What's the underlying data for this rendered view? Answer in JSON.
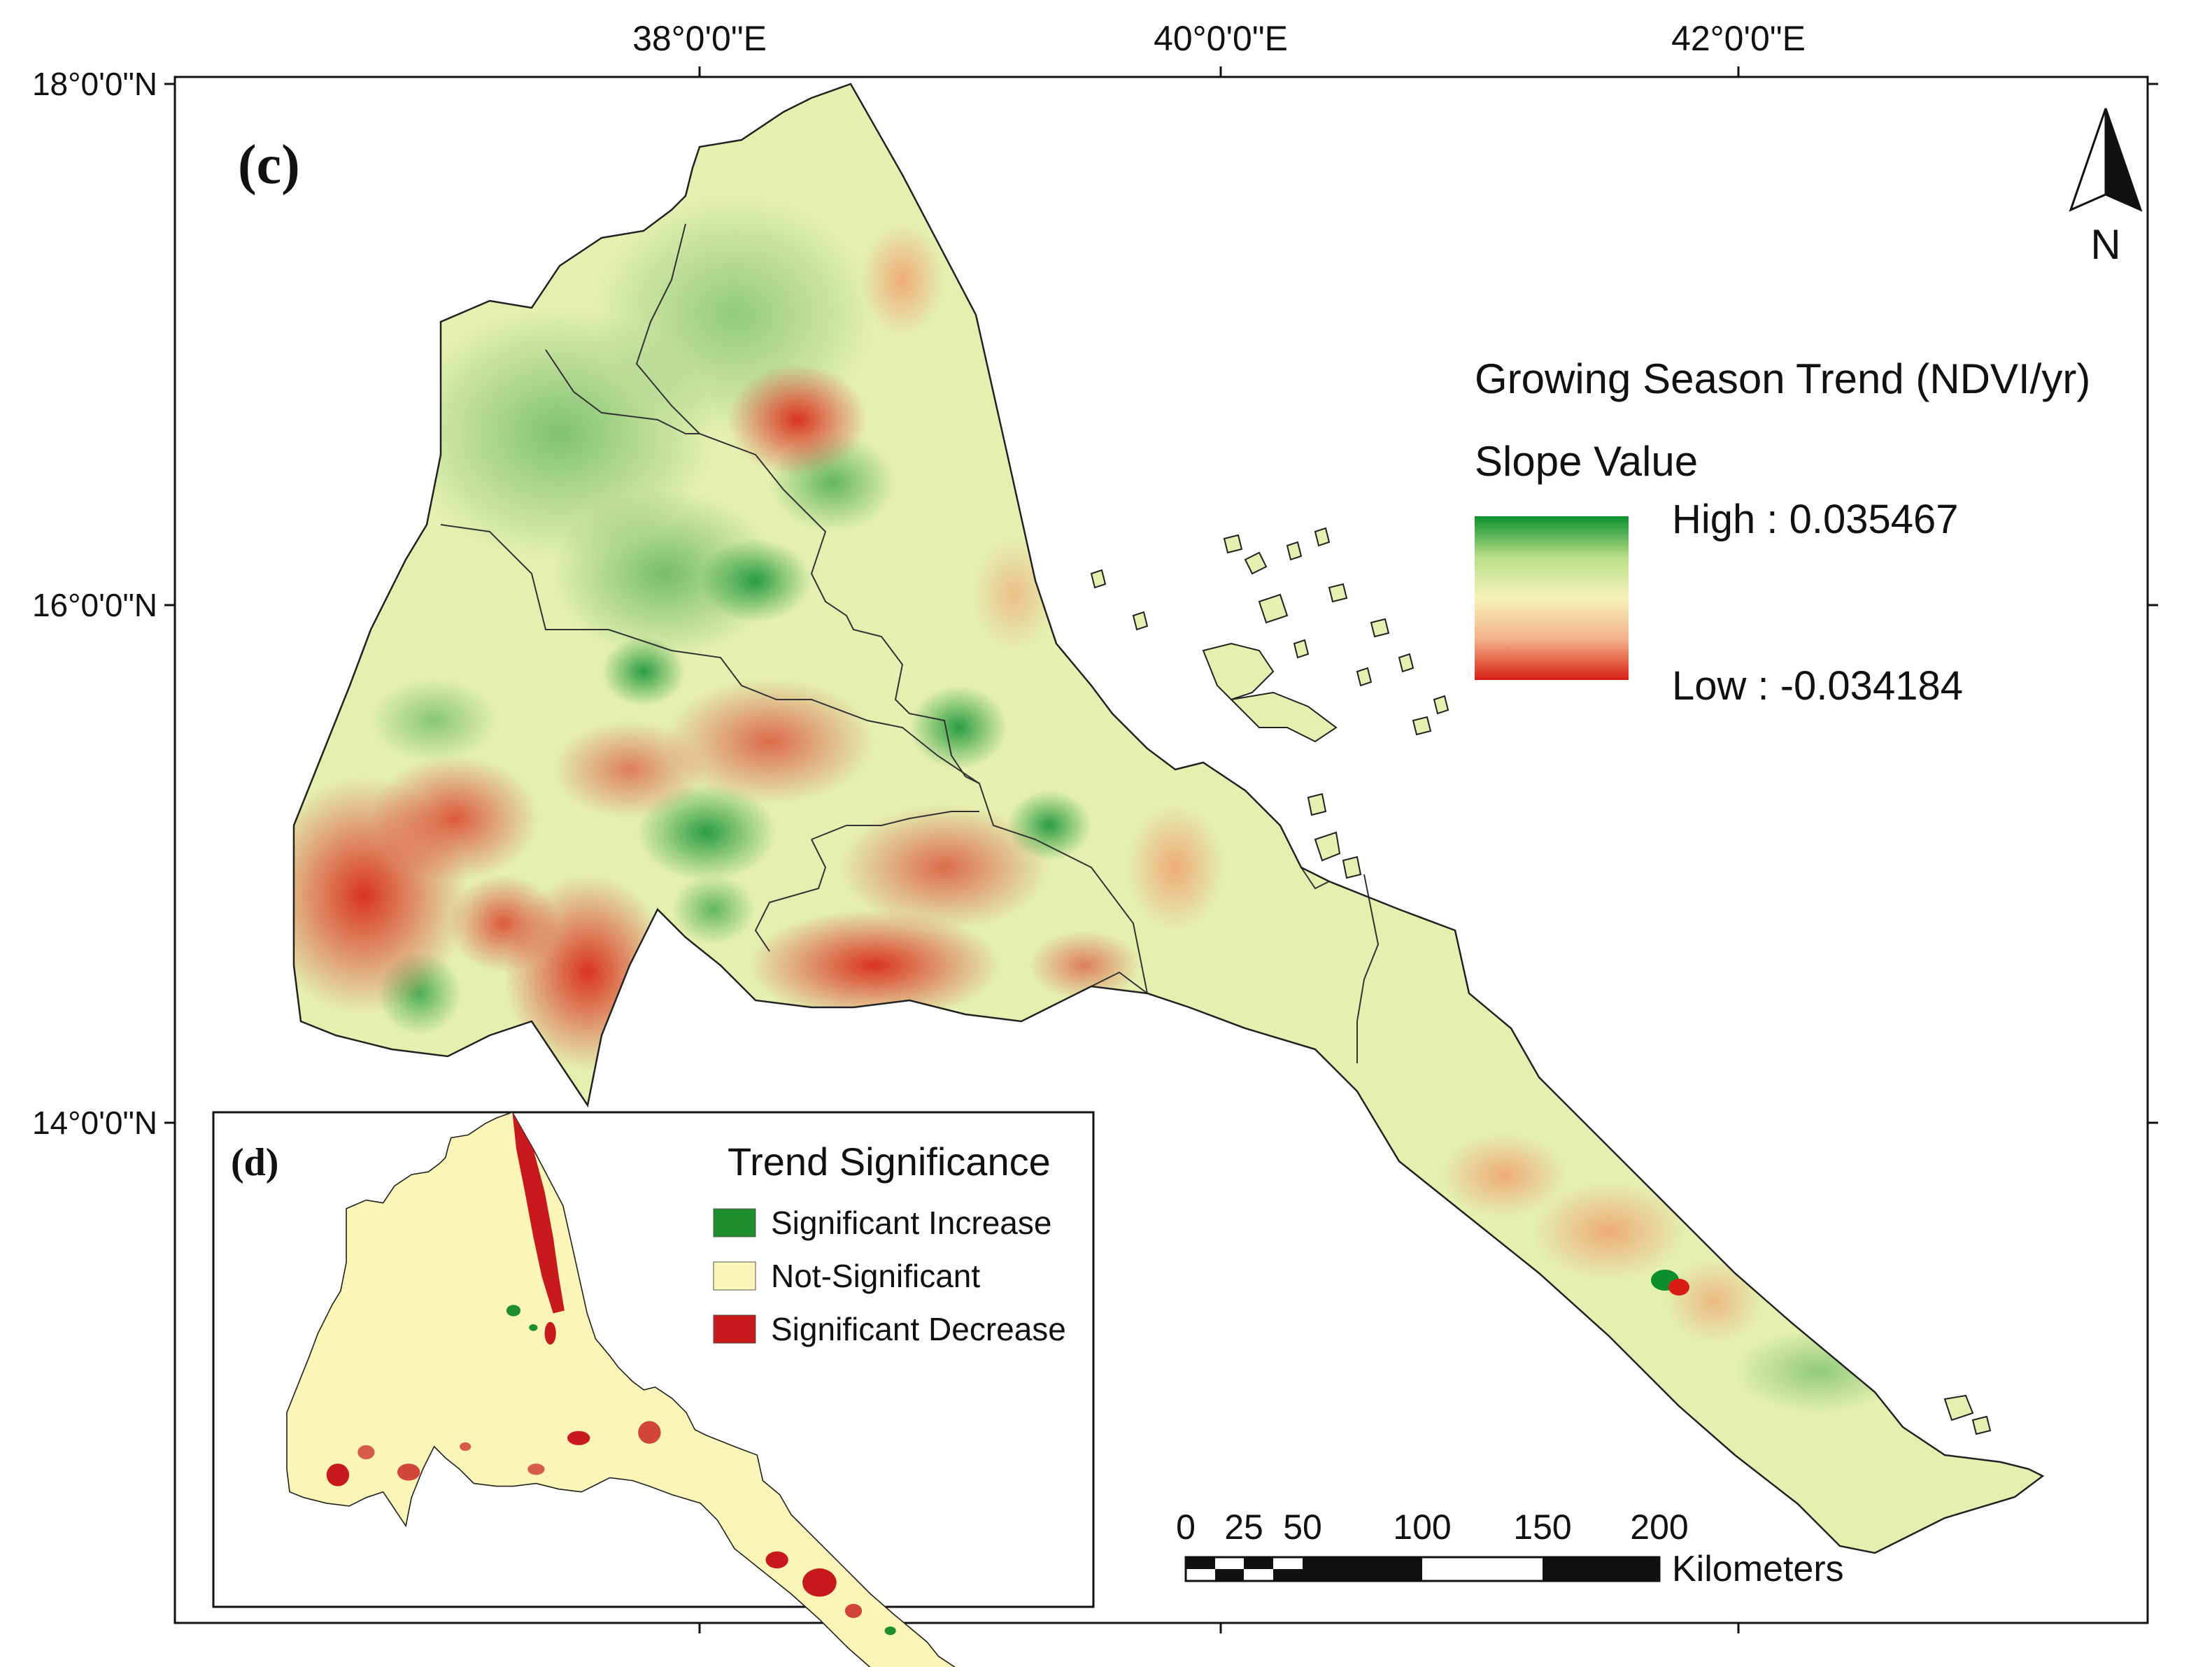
{
  "map": {
    "panel_label": "(c)",
    "inset_panel_label": "(d)",
    "longitude_labels": [
      "38°0'0\"E",
      "40°0'0\"E",
      "42°0'0\"E"
    ],
    "latitude_labels": [
      "18°0'0\"N",
      "16°0'0\"N",
      "14°0'0\"N"
    ],
    "north_arrow_label": "N",
    "colors": {
      "high": "#0a8f2a",
      "mid_green": "#b9de8a",
      "mid": "#f6f2b8",
      "mid_red": "#f4b38a",
      "low": "#d81e14",
      "significant_increase": "#1e8e2e",
      "not_significant": "#fbf6b8",
      "significant_decrease": "#c8191c"
    }
  },
  "legend": {
    "title": "Growing Season Trend (NDVI/yr)",
    "subtitle": "Slope Value",
    "high_label": "High : 0.035467",
    "low_label": "Low : -0.034184"
  },
  "inset_legend": {
    "title": "Trend Significance",
    "items": [
      {
        "label": "Significant Increase"
      },
      {
        "label": "Not-Significant"
      },
      {
        "label": "Significant Decrease"
      }
    ]
  },
  "scale_bar": {
    "ticks": [
      "0",
      "25",
      "50",
      "100",
      "150",
      "200"
    ],
    "unit": "Kilometers"
  }
}
